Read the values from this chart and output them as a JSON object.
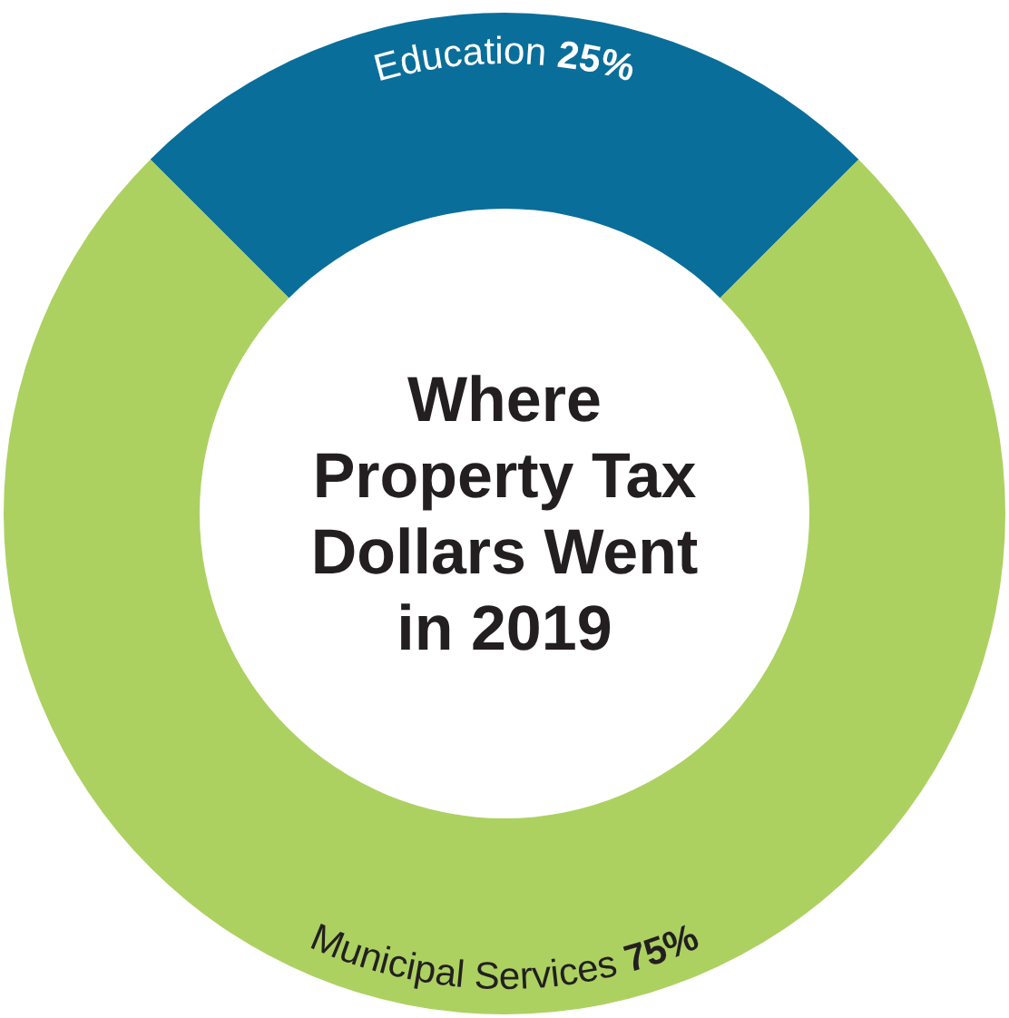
{
  "chart_data": {
    "type": "donut",
    "title": "Where Property Tax Dollars Went in 2019",
    "categories": [
      "Education",
      "Municipal Services"
    ],
    "values": [
      25,
      75
    ],
    "colors": [
      "#0a6e9a",
      "#acd161"
    ],
    "value_labels": [
      "25%",
      "75%"
    ]
  }
}
